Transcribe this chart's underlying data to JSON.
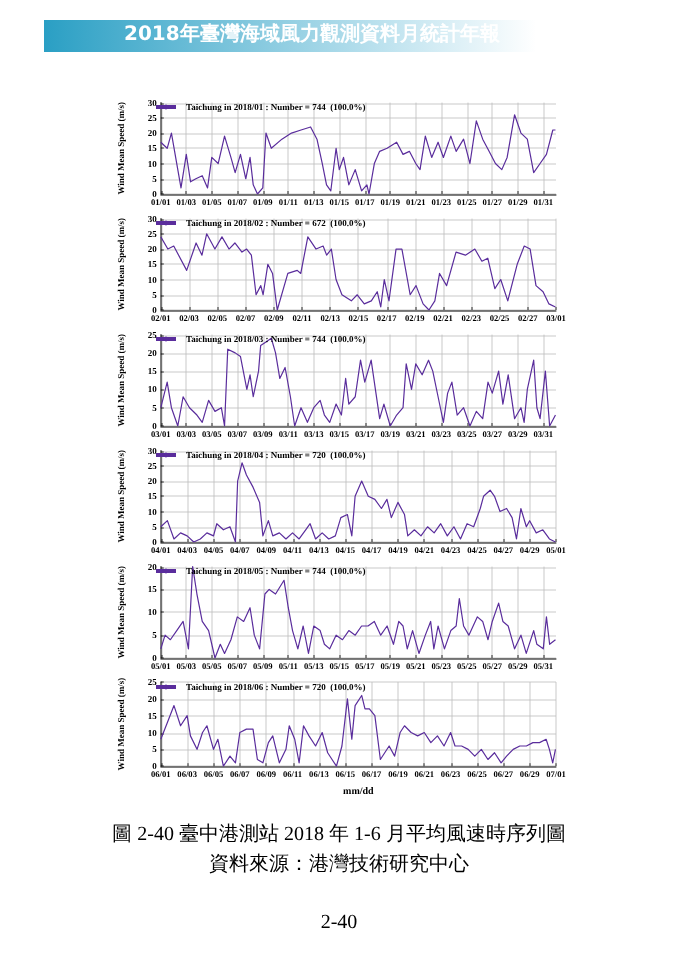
{
  "chart_data": [
    {
      "type": "line",
      "annotations": [
        "2018年臺灣海域風力觀測資料月統計年報"
      ],
      "ylabel": "Wind Mean Speed (m/s)",
      "legend": "top left",
      "grid": true,
      "xlim": [
        "2018-01-01",
        "2018-02-01"
      ],
      "ylim": [
        0,
        30
      ],
      "yticks": [
        0,
        5,
        10,
        15,
        20,
        25,
        30
      ],
      "xticks": [
        {
          "value": "2018-01-01",
          "label": "01/01"
        },
        {
          "value": "2018-01-03",
          "label": "01/03"
        },
        {
          "value": "2018-01-05",
          "label": "01/05"
        },
        {
          "value": "2018-01-07",
          "label": "01/07"
        },
        {
          "value": "2018-01-09",
          "label": "01/09"
        },
        {
          "value": "2018-01-11",
          "label": "01/11"
        },
        {
          "value": "2018-01-13",
          "label": "01/13"
        },
        {
          "value": "2018-01-15",
          "label": "01/15"
        },
        {
          "value": "2018-01-17",
          "label": "01/17"
        },
        {
          "value": "2018-01-19",
          "label": "01/19"
        },
        {
          "value": "2018-01-21",
          "label": "01/21"
        },
        {
          "value": "2018-01-23",
          "label": "01/23"
        },
        {
          "value": "2018-01-25",
          "label": "01/25"
        },
        {
          "value": "2018-01-27",
          "label": "01/27"
        },
        {
          "value": "2018-01-29",
          "label": "01/29"
        },
        {
          "value": "2018-01-31",
          "label": "01/31"
        }
      ],
      "series": [
        {
          "name": "Taichung in 2018/01 : Number = 744  (100.0%)",
          "color": "#5a2d9c",
          "x": [
            "2018-01-01T00:00",
            "2018-01-01T12:00",
            "2018-01-01T20:00",
            "2018-01-02T08:00",
            "2018-01-02T14:00",
            "2018-01-03T00:00",
            "2018-01-03T08:00",
            "2018-01-03T18:00",
            "2018-01-04T06:00",
            "2018-01-04T16:00",
            "2018-01-05T00:00",
            "2018-01-05T12:00",
            "2018-01-06T00:00",
            "2018-01-06T12:00",
            "2018-01-06T20:00",
            "2018-01-07T06:00",
            "2018-01-07T16:00",
            "2018-01-08T00:00",
            "2018-01-08T06:00",
            "2018-01-08T14:00",
            "2018-01-09T00:00",
            "2018-01-09T06:00",
            "2018-01-09T16:00",
            "2018-01-10T12:00",
            "2018-01-11T06:00",
            "2018-01-12T00:00",
            "2018-01-12T18:00",
            "2018-01-13T06:00",
            "2018-01-13T16:00",
            "2018-01-14T00:00",
            "2018-01-14T08:00",
            "2018-01-14T18:00",
            "2018-01-15T00:00",
            "2018-01-15T08:00",
            "2018-01-15T18:00",
            "2018-01-16T06:00",
            "2018-01-16T18:00",
            "2018-01-17T04:00",
            "2018-01-17T08:00",
            "2018-01-17T18:00",
            "2018-01-18T04:00",
            "2018-01-18T18:00",
            "2018-01-19T12:00",
            "2018-01-20T00:00",
            "2018-01-20T12:00",
            "2018-01-21T00:00",
            "2018-01-21T08:00",
            "2018-01-21T18:00",
            "2018-01-22T06:00",
            "2018-01-22T18:00",
            "2018-01-23T04:00",
            "2018-01-23T18:00",
            "2018-01-24T04:00",
            "2018-01-24T18:00",
            "2018-01-25T06:00",
            "2018-01-25T18:00",
            "2018-01-26T06:00",
            "2018-01-26T18:00",
            "2018-01-27T06:00",
            "2018-01-27T18:00",
            "2018-01-28T04:00",
            "2018-01-28T18:00",
            "2018-01-29T06:00",
            "2018-01-29T18:00",
            "2018-01-30T06:00",
            "2018-01-30T18:00",
            "2018-01-31T06:00",
            "2018-01-31T18:00",
            "2018-01-31T23:00"
          ],
          "values": [
            17,
            15,
            20,
            8,
            2,
            13,
            4,
            5,
            6,
            2,
            12,
            10,
            19,
            12,
            7,
            13,
            5,
            12,
            3,
            0,
            2,
            20,
            15,
            18,
            20,
            21,
            22,
            18,
            10,
            3,
            1,
            15,
            8,
            12,
            3,
            8,
            1,
            3,
            0,
            10,
            14,
            15,
            17,
            13,
            14,
            10,
            8,
            19,
            12,
            17,
            12,
            19,
            14,
            18,
            10,
            24,
            18,
            14,
            10,
            8,
            12,
            26,
            20,
            18,
            7,
            10,
            13,
            21,
            21
          ]
        }
      ]
    },
    {
      "type": "line",
      "ylabel": "Wind Mean Speed (m/s)",
      "legend": "top left",
      "grid": true,
      "xlim": [
        "2018-02-01",
        "2018-03-01"
      ],
      "ylim": [
        0,
        30
      ],
      "yticks": [
        0,
        5,
        10,
        15,
        20,
        25,
        30
      ],
      "xticks": [
        {
          "value": "2018-02-01",
          "label": "02/01"
        },
        {
          "value": "2018-02-03",
          "label": "02/03"
        },
        {
          "value": "2018-02-05",
          "label": "02/05"
        },
        {
          "value": "2018-02-07",
          "label": "02/07"
        },
        {
          "value": "2018-02-09",
          "label": "02/09"
        },
        {
          "value": "2018-02-11",
          "label": "02/11"
        },
        {
          "value": "2018-02-13",
          "label": "02/13"
        },
        {
          "value": "2018-02-15",
          "label": "02/15"
        },
        {
          "value": "2018-02-17",
          "label": "02/17"
        },
        {
          "value": "2018-02-19",
          "label": "02/19"
        },
        {
          "value": "2018-02-21",
          "label": "02/21"
        },
        {
          "value": "2018-02-23",
          "label": "02/23"
        },
        {
          "value": "2018-02-25",
          "label": "02/25"
        },
        {
          "value": "2018-02-27",
          "label": "02/27"
        },
        {
          "value": "2018-03-01",
          "label": "03/01"
        }
      ],
      "series": [
        {
          "name": "Taichung in 2018/02 : Number = 672  (100.0%)",
          "color": "#5a2d9c",
          "x": [
            "2018-02-01T00:00",
            "2018-02-01T12:00",
            "2018-02-01T22:00",
            "2018-02-02T20:00",
            "2018-02-03T12:00",
            "2018-02-03T22:00",
            "2018-02-04T06:00",
            "2018-02-04T20:00",
            "2018-02-05T08:00",
            "2018-02-05T20:00",
            "2018-02-06T06:00",
            "2018-02-06T18:00",
            "2018-02-07T02:00",
            "2018-02-07T10:00",
            "2018-02-07T18:00",
            "2018-02-08T02:00",
            "2018-02-08T06:00",
            "2018-02-08T14:00",
            "2018-02-08T22:00",
            "2018-02-09T06:00",
            "2018-02-10T00:00",
            "2018-02-10T16:00",
            "2018-02-10T22:00",
            "2018-02-11T10:00",
            "2018-02-12T00:00",
            "2018-02-12T12:00",
            "2018-02-12T18:00",
            "2018-02-13T02:00",
            "2018-02-13T10:00",
            "2018-02-13T20:00",
            "2018-02-14T12:00",
            "2018-02-14T22:00",
            "2018-02-15T10:00",
            "2018-02-15T22:00",
            "2018-02-16T08:00",
            "2018-02-16T14:00",
            "2018-02-16T20:00",
            "2018-02-17T04:00",
            "2018-02-17T16:00",
            "2018-02-18T02:00",
            "2018-02-18T16:00",
            "2018-02-19T02:00",
            "2018-02-19T14:00",
            "2018-02-20T00:00",
            "2018-02-20T10:00",
            "2018-02-20T18:00",
            "2018-02-21T06:00",
            "2018-02-21T22:00",
            "2018-02-22T14:00",
            "2018-02-23T06:00",
            "2018-02-23T18:00",
            "2018-02-24T04:00",
            "2018-02-24T16:00",
            "2018-02-25T02:00",
            "2018-02-25T14:00",
            "2018-02-26T06:00",
            "2018-02-26T18:00",
            "2018-02-27T04:00",
            "2018-02-27T14:00",
            "2018-02-28T02:00",
            "2018-02-28T12:00",
            "2018-02-28T23:00"
          ],
          "values": [
            24,
            20,
            21,
            13,
            22,
            18,
            25,
            20,
            24,
            20,
            22,
            19,
            20,
            18,
            5,
            8,
            5,
            15,
            12,
            0,
            12,
            13,
            12,
            24,
            20,
            21,
            18,
            20,
            10,
            5,
            3,
            5,
            2,
            3,
            6,
            1,
            10,
            3,
            20,
            20,
            5,
            8,
            2,
            0,
            3,
            12,
            8,
            19,
            18,
            20,
            16,
            17,
            7,
            10,
            3,
            15,
            21,
            20,
            8,
            6,
            2,
            1
          ]
        }
      ]
    },
    {
      "type": "line",
      "ylabel": "Wind Mean Speed (m/s)",
      "legend": "top left",
      "grid": true,
      "xlim": [
        "2018-03-01",
        "2018-04-01"
      ],
      "ylim": [
        0,
        25
      ],
      "yticks": [
        0,
        5,
        10,
        15,
        20,
        25
      ],
      "xticks": [
        {
          "value": "2018-03-01",
          "label": "03/01"
        },
        {
          "value": "2018-03-03",
          "label": "03/03"
        },
        {
          "value": "2018-03-05",
          "label": "03/05"
        },
        {
          "value": "2018-03-07",
          "label": "03/07"
        },
        {
          "value": "2018-03-09",
          "label": "03/09"
        },
        {
          "value": "2018-03-11",
          "label": "03/11"
        },
        {
          "value": "2018-03-13",
          "label": "03/13"
        },
        {
          "value": "2018-03-15",
          "label": "03/15"
        },
        {
          "value": "2018-03-17",
          "label": "03/17"
        },
        {
          "value": "2018-03-19",
          "label": "03/19"
        },
        {
          "value": "2018-03-21",
          "label": "03/21"
        },
        {
          "value": "2018-03-23",
          "label": "03/23"
        },
        {
          "value": "2018-03-25",
          "label": "03/25"
        },
        {
          "value": "2018-03-27",
          "label": "03/27"
        },
        {
          "value": "2018-03-29",
          "label": "03/29"
        },
        {
          "value": "2018-03-31",
          "label": "03/31"
        }
      ],
      "series": [
        {
          "name": "Taichung in 2018/03 : Number = 744  (100.0%)",
          "color": "#5a2d9c",
          "x": [
            "2018-03-01T00:00",
            "2018-03-01T12:00",
            "2018-03-01T20:00",
            "2018-03-02T08:00",
            "2018-03-02T18:00",
            "2018-03-03T06:00",
            "2018-03-03T20:00",
            "2018-03-04T06:00",
            "2018-03-04T18:00",
            "2018-03-05T06:00",
            "2018-03-05T18:00",
            "2018-03-06T00:00",
            "2018-03-06T06:00",
            "2018-03-06T20:00",
            "2018-03-07T06:00",
            "2018-03-07T18:00",
            "2018-03-08T00:00",
            "2018-03-08T06:00",
            "2018-03-08T16:00",
            "2018-03-08T20:00",
            "2018-03-09T06:00",
            "2018-03-09T16:00",
            "2018-03-10T00:00",
            "2018-03-10T08:00",
            "2018-03-10T18:00",
            "2018-03-11T04:00",
            "2018-03-11T12:00",
            "2018-03-12T00:00",
            "2018-03-12T12:00",
            "2018-03-13T00:00",
            "2018-03-13T12:00",
            "2018-03-13T20:00",
            "2018-03-14T06:00",
            "2018-03-14T18:00",
            "2018-03-15T04:00",
            "2018-03-15T12:00",
            "2018-03-15T18:00",
            "2018-03-16T06:00",
            "2018-03-16T16:00",
            "2018-03-17T00:00",
            "2018-03-17T12:00",
            "2018-03-17T20:00",
            "2018-03-18T04:00",
            "2018-03-18T12:00",
            "2018-03-19T00:00",
            "2018-03-19T12:00",
            "2018-03-20T00:00",
            "2018-03-20T06:00",
            "2018-03-20T16:00",
            "2018-03-21T00:00",
            "2018-03-21T12:00",
            "2018-03-22T00:00",
            "2018-03-22T08:00",
            "2018-03-22T18:00",
            "2018-03-23T04:00",
            "2018-03-23T12:00",
            "2018-03-23T20:00",
            "2018-03-24T06:00",
            "2018-03-24T18:00",
            "2018-03-25T06:00",
            "2018-03-25T18:00",
            "2018-03-26T06:00",
            "2018-03-26T16:00",
            "2018-03-27T00:00",
            "2018-03-27T12:00",
            "2018-03-27T20:00",
            "2018-03-28T06:00",
            "2018-03-28T18:00",
            "2018-03-29T06:00",
            "2018-03-29T12:00",
            "2018-03-29T18:00",
            "2018-03-30T06:00",
            "2018-03-30T12:00",
            "2018-03-30T18:00",
            "2018-03-31T04:00",
            "2018-03-31T12:00",
            "2018-03-31T23:00"
          ],
          "values": [
            5,
            12,
            5,
            0,
            8,
            5,
            3,
            1,
            7,
            4,
            5,
            0,
            21,
            20,
            19,
            10,
            14,
            8,
            15,
            22,
            23,
            24,
            20,
            13,
            16,
            8,
            0,
            5,
            1,
            5,
            7,
            3,
            1,
            6,
            3,
            13,
            6,
            8,
            18,
            12,
            18,
            10,
            2,
            6,
            0,
            3,
            5,
            17,
            10,
            17,
            14,
            18,
            15,
            8,
            1,
            9,
            12,
            3,
            5,
            0,
            4,
            2,
            12,
            9,
            15,
            6,
            14,
            2,
            5,
            1,
            10,
            18,
            5,
            2,
            15,
            0,
            3
          ]
        }
      ]
    },
    {
      "type": "line",
      "ylabel": "Wind Mean Speed (m/s)",
      "legend": "top left",
      "grid": true,
      "xlim": [
        "2018-04-01",
        "2018-05-01"
      ],
      "ylim": [
        0,
        30
      ],
      "yticks": [
        0,
        5,
        10,
        15,
        20,
        25,
        30
      ],
      "xticks": [
        {
          "value": "2018-04-01",
          "label": "04/01"
        },
        {
          "value": "2018-04-03",
          "label": "04/03"
        },
        {
          "value": "2018-04-05",
          "label": "04/05"
        },
        {
          "value": "2018-04-07",
          "label": "04/07"
        },
        {
          "value": "2018-04-09",
          "label": "04/09"
        },
        {
          "value": "2018-04-11",
          "label": "04/11"
        },
        {
          "value": "2018-04-13",
          "label": "04/13"
        },
        {
          "value": "2018-04-15",
          "label": "04/15"
        },
        {
          "value": "2018-04-17",
          "label": "04/17"
        },
        {
          "value": "2018-04-19",
          "label": "04/19"
        },
        {
          "value": "2018-04-21",
          "label": "04/21"
        },
        {
          "value": "2018-04-23",
          "label": "04/23"
        },
        {
          "value": "2018-04-25",
          "label": "04/25"
        },
        {
          "value": "2018-04-27",
          "label": "04/27"
        },
        {
          "value": "2018-04-29",
          "label": "04/29"
        },
        {
          "value": "2018-05-01",
          "label": "05/01"
        }
      ],
      "series": [
        {
          "name": "Taichung in 2018/04 : Number = 720  (100.0%)",
          "color": "#5a2d9c",
          "x": [
            "2018-04-01T00:00",
            "2018-04-01T12:00",
            "2018-04-02T00:00",
            "2018-04-02T12:00",
            "2018-04-03T00:00",
            "2018-04-03T12:00",
            "2018-04-04T00:00",
            "2018-04-04T12:00",
            "2018-04-05T00:00",
            "2018-04-05T06:00",
            "2018-04-05T18:00",
            "2018-04-06T06:00",
            "2018-04-06T16:00",
            "2018-04-06T20:00",
            "2018-04-07T04:00",
            "2018-04-07T12:00",
            "2018-04-08T00:00",
            "2018-04-08T12:00",
            "2018-04-08T18:00",
            "2018-04-09T04:00",
            "2018-04-09T12:00",
            "2018-04-10T00:00",
            "2018-04-10T12:00",
            "2018-04-11T00:00",
            "2018-04-11T12:00",
            "2018-04-12T00:00",
            "2018-04-12T08:00",
            "2018-04-12T18:00",
            "2018-04-13T06:00",
            "2018-04-13T18:00",
            "2018-04-14T06:00",
            "2018-04-14T16:00",
            "2018-04-15T04:00",
            "2018-04-15T12:00",
            "2018-04-15T18:00",
            "2018-04-16T06:00",
            "2018-04-16T18:00",
            "2018-04-17T06:00",
            "2018-04-17T18:00",
            "2018-04-18T04:00",
            "2018-04-18T12:00",
            "2018-04-19T00:00",
            "2018-04-19T12:00",
            "2018-04-19T18:00",
            "2018-04-20T06:00",
            "2018-04-20T18:00",
            "2018-04-21T06:00",
            "2018-04-21T18:00",
            "2018-04-22T06:00",
            "2018-04-22T18:00",
            "2018-04-23T06:00",
            "2018-04-23T18:00",
            "2018-04-24T06:00",
            "2018-04-24T18:00",
            "2018-04-25T06:00",
            "2018-04-25T12:00",
            "2018-04-26T00:00",
            "2018-04-26T08:00",
            "2018-04-26T18:00",
            "2018-04-27T06:00",
            "2018-04-27T16:00",
            "2018-04-28T00:00",
            "2018-04-28T08:00",
            "2018-04-28T18:00",
            "2018-04-29T00:00",
            "2018-04-29T12:00",
            "2018-04-30T00:00",
            "2018-04-30T12:00",
            "2018-04-30T23:00"
          ],
          "values": [
            5,
            7,
            1,
            3,
            2,
            0,
            1,
            3,
            2,
            6,
            4,
            5,
            0,
            20,
            26,
            22,
            18,
            13,
            2,
            7,
            2,
            3,
            1,
            3,
            1,
            4,
            6,
            1,
            3,
            1,
            2,
            8,
            9,
            2,
            15,
            20,
            15,
            14,
            11,
            14,
            8,
            13,
            9,
            2,
            4,
            2,
            5,
            3,
            6,
            2,
            5,
            1,
            6,
            5,
            11,
            15,
            17,
            15,
            10,
            11,
            8,
            1,
            11,
            5,
            7,
            3,
            4,
            1,
            0
          ]
        }
      ]
    },
    {
      "type": "line",
      "ylabel": "Wind Mean Speed (m/s)",
      "legend": "top left",
      "grid": true,
      "xlim": [
        "2018-05-01",
        "2018-06-01"
      ],
      "ylim": [
        0,
        20
      ],
      "yticks": [
        0,
        5,
        10,
        15,
        20
      ],
      "xticks": [
        {
          "value": "2018-05-01",
          "label": "05/01"
        },
        {
          "value": "2018-05-03",
          "label": "05/03"
        },
        {
          "value": "2018-05-05",
          "label": "05/05"
        },
        {
          "value": "2018-05-07",
          "label": "05/07"
        },
        {
          "value": "2018-05-09",
          "label": "05/09"
        },
        {
          "value": "2018-05-11",
          "label": "05/11"
        },
        {
          "value": "2018-05-13",
          "label": "05/13"
        },
        {
          "value": "2018-05-15",
          "label": "05/15"
        },
        {
          "value": "2018-05-17",
          "label": "05/17"
        },
        {
          "value": "2018-05-19",
          "label": "05/19"
        },
        {
          "value": "2018-05-21",
          "label": "05/21"
        },
        {
          "value": "2018-05-23",
          "label": "05/23"
        },
        {
          "value": "2018-05-25",
          "label": "05/25"
        },
        {
          "value": "2018-05-27",
          "label": "05/27"
        },
        {
          "value": "2018-05-29",
          "label": "05/29"
        },
        {
          "value": "2018-05-31",
          "label": "05/31"
        }
      ],
      "series": [
        {
          "name": "Taichung in 2018/05 : Number = 744  (100.0%)",
          "color": "#5a2d9c",
          "x": [
            "2018-05-01T00:00",
            "2018-05-01T08:00",
            "2018-05-01T18:00",
            "2018-05-02T06:00",
            "2018-05-02T18:00",
            "2018-05-03T04:00",
            "2018-05-03T12:00",
            "2018-05-03T20:00",
            "2018-05-04T06:00",
            "2018-05-04T18:00",
            "2018-05-05T06:00",
            "2018-05-05T16:00",
            "2018-05-06T00:00",
            "2018-05-06T12:00",
            "2018-05-07T00:00",
            "2018-05-07T12:00",
            "2018-05-08T00:00",
            "2018-05-08T08:00",
            "2018-05-08T18:00",
            "2018-05-09T04:00",
            "2018-05-09T12:00",
            "2018-05-10T00:00",
            "2018-05-10T16:00",
            "2018-05-11T00:00",
            "2018-05-11T08:00",
            "2018-05-11T18:00",
            "2018-05-12T04:00",
            "2018-05-12T14:00",
            "2018-05-13T00:00",
            "2018-05-13T12:00",
            "2018-05-13T20:00",
            "2018-05-14T06:00",
            "2018-05-14T18:00",
            "2018-05-15T06:00",
            "2018-05-15T18:00",
            "2018-05-16T06:00",
            "2018-05-16T18:00",
            "2018-05-17T06:00",
            "2018-05-17T18:00",
            "2018-05-18T06:00",
            "2018-05-18T18:00",
            "2018-05-19T06:00",
            "2018-05-19T16:00",
            "2018-05-20T00:00",
            "2018-05-20T08:00",
            "2018-05-20T18:00",
            "2018-05-21T06:00",
            "2018-05-21T18:00",
            "2018-05-22T04:00",
            "2018-05-22T10:00",
            "2018-05-22T18:00",
            "2018-05-23T06:00",
            "2018-05-23T18:00",
            "2018-05-24T04:00",
            "2018-05-24T10:00",
            "2018-05-24T18:00",
            "2018-05-25T04:00",
            "2018-05-25T12:00",
            "2018-05-25T20:00",
            "2018-05-26T06:00",
            "2018-05-26T16:00",
            "2018-05-27T00:00",
            "2018-05-27T12:00",
            "2018-05-27T20:00",
            "2018-05-28T06:00",
            "2018-05-28T18:00",
            "2018-05-29T06:00",
            "2018-05-29T16:00",
            "2018-05-30T06:00",
            "2018-05-30T12:00",
            "2018-05-31T00:00",
            "2018-05-31T06:00",
            "2018-05-31T12:00",
            "2018-05-31T23:00"
          ],
          "values": [
            2,
            5,
            4,
            6,
            8,
            2,
            20,
            14,
            8,
            6,
            0,
            3,
            1,
            4,
            9,
            8,
            11,
            5,
            2,
            14,
            15,
            14,
            17,
            11,
            6,
            2,
            7,
            1,
            7,
            6,
            3,
            2,
            5,
            4,
            6,
            5,
            7,
            7,
            8,
            5,
            7,
            3,
            8,
            7,
            2,
            6,
            1,
            5,
            8,
            2,
            7,
            2,
            6,
            7,
            13,
            7,
            5,
            7,
            9,
            8,
            4,
            8,
            12,
            8,
            7,
            2,
            5,
            1,
            6,
            3,
            2,
            9,
            3,
            4
          ]
        }
      ]
    },
    {
      "type": "line",
      "ylabel": "Wind Mean Speed (m/s)",
      "xlabel": "mm/dd",
      "legend": "top left",
      "grid": true,
      "xlim": [
        "2018-06-01",
        "2018-07-01"
      ],
      "ylim": [
        0,
        25
      ],
      "yticks": [
        0,
        5,
        10,
        15,
        20,
        25
      ],
      "annotations": [
        "圖 2-40 臺中港測站 2018 年 1-6 月平均風速時序列圖",
        "資料來源：港灣技術研究中心",
        "2-40"
      ],
      "xticks": [
        {
          "value": "2018-06-01",
          "label": "06/01"
        },
        {
          "value": "2018-06-03",
          "label": "06/03"
        },
        {
          "value": "2018-06-05",
          "label": "06/05"
        },
        {
          "value": "2018-06-07",
          "label": "06/07"
        },
        {
          "value": "2018-06-09",
          "label": "06/09"
        },
        {
          "value": "2018-06-11",
          "label": "06/11"
        },
        {
          "value": "2018-06-13",
          "label": "06/13"
        },
        {
          "value": "2018-06-15",
          "label": "06/15"
        },
        {
          "value": "2018-06-17",
          "label": "06/17"
        },
        {
          "value": "2018-06-19",
          "label": "06/19"
        },
        {
          "value": "2018-06-21",
          "label": "06/21"
        },
        {
          "value": "2018-06-23",
          "label": "06/23"
        },
        {
          "value": "2018-06-25",
          "label": "06/25"
        },
        {
          "value": "2018-06-27",
          "label": "06/27"
        },
        {
          "value": "2018-06-29",
          "label": "06/29"
        },
        {
          "value": "2018-07-01",
          "label": "07/01"
        }
      ],
      "series": [
        {
          "name": "Taichung in 2018/06 : Number = 720  (100.0%)",
          "color": "#5a2d9c",
          "x": [
            "2018-06-01T00:00",
            "2018-06-01T12:00",
            "2018-06-02T00:00",
            "2018-06-02T12:00",
            "2018-06-03T00:00",
            "2018-06-03T06:00",
            "2018-06-03T18:00",
            "2018-06-04T04:00",
            "2018-06-04T12:00",
            "2018-06-05T00:00",
            "2018-06-05T08:00",
            "2018-06-05T18:00",
            "2018-06-06T06:00",
            "2018-06-06T16:00",
            "2018-06-07T00:00",
            "2018-06-07T12:00",
            "2018-06-08T00:00",
            "2018-06-08T08:00",
            "2018-06-08T18:00",
            "2018-06-09T04:00",
            "2018-06-09T12:00",
            "2018-06-10T00:00",
            "2018-06-10T12:00",
            "2018-06-10T18:00",
            "2018-06-11T04:00",
            "2018-06-11T12:00",
            "2018-06-11T20:00",
            "2018-06-12T06:00",
            "2018-06-12T18:00",
            "2018-06-13T06:00",
            "2018-06-13T16:00",
            "2018-06-14T00:00",
            "2018-06-14T08:00",
            "2018-06-14T18:00",
            "2018-06-15T04:00",
            "2018-06-15T12:00",
            "2018-06-15T18:00",
            "2018-06-16T06:00",
            "2018-06-16T12:00",
            "2018-06-16T20:00",
            "2018-06-17T06:00",
            "2018-06-17T16:00",
            "2018-06-18T00:00",
            "2018-06-18T08:00",
            "2018-06-18T18:00",
            "2018-06-19T04:00",
            "2018-06-19T12:00",
            "2018-06-20T00:00",
            "2018-06-20T12:00",
            "2018-06-21T00:00",
            "2018-06-21T12:00",
            "2018-06-22T00:00",
            "2018-06-22T12:00",
            "2018-06-23T00:00",
            "2018-06-23T08:00",
            "2018-06-23T20:00",
            "2018-06-24T08:00",
            "2018-06-24T20:00",
            "2018-06-25T08:00",
            "2018-06-25T20:00",
            "2018-06-26T08:00",
            "2018-06-26T20:00",
            "2018-06-27T06:00",
            "2018-06-27T18:00",
            "2018-06-28T06:00",
            "2018-06-28T18:00",
            "2018-06-29T06:00",
            "2018-06-29T18:00",
            "2018-06-30T06:00",
            "2018-06-30T12:00",
            "2018-06-30T18:00",
            "2018-06-30T23:00"
          ],
          "values": [
            8,
            13,
            18,
            12,
            15,
            9,
            5,
            10,
            12,
            5,
            8,
            0,
            3,
            1,
            10,
            11,
            11,
            2,
            1,
            7,
            9,
            1,
            5,
            12,
            8,
            1,
            12,
            9,
            6,
            10,
            4,
            2,
            0,
            6,
            20,
            8,
            18,
            21,
            17,
            17,
            15,
            2,
            4,
            6,
            3,
            10,
            12,
            10,
            9,
            10,
            7,
            9,
            6,
            10,
            6,
            6,
            5,
            3,
            5,
            2,
            4,
            1,
            3,
            5,
            6,
            6,
            7,
            7,
            8,
            5,
            1,
            5
          ]
        }
      ]
    }
  ]
}
